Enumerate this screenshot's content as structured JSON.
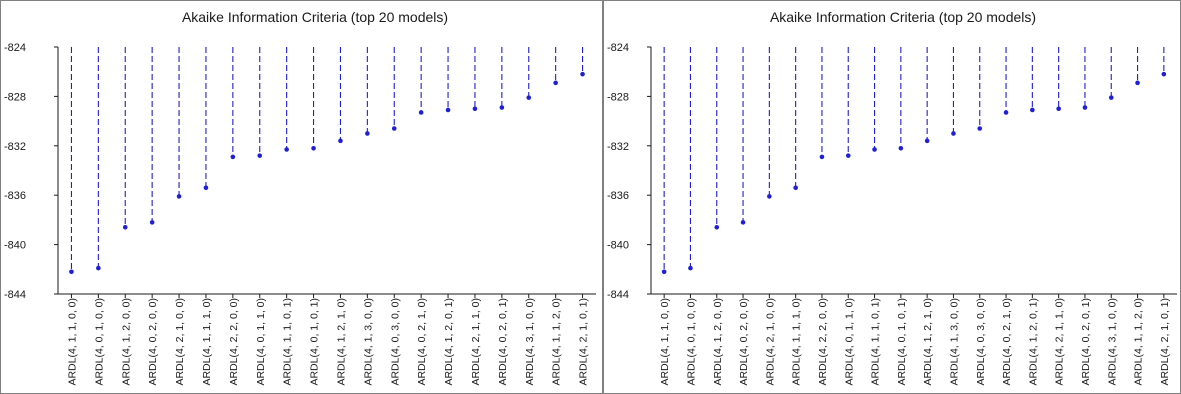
{
  "chart_data": [
    {
      "type": "dropline",
      "title": "Akaike Information Criteria (top 20 models)",
      "ylim": [
        -844,
        -824
      ],
      "yticks": [
        -824,
        -828,
        -832,
        -836,
        -840,
        -844
      ],
      "ytick_labels": [
        "-824",
        "-828",
        "-832",
        "-836",
        "-840",
        "-844"
      ],
      "grid": false,
      "color": "#1f1fd6",
      "categories": [
        "ARDL(4, 1, 1, 0, 0)",
        "ARDL(4, 0, 1, 0, 0)",
        "ARDL(4, 1, 2, 0, 0)",
        "ARDL(4, 0, 2, 0, 0)",
        "ARDL(4, 2, 1, 0, 0)",
        "ARDL(4, 1, 1, 1, 0)",
        "ARDL(4, 2, 2, 0, 0)",
        "ARDL(4, 0, 1, 1, 0)",
        "ARDL(4, 1, 1, 0, 1)",
        "ARDL(4, 0, 1, 0, 1)",
        "ARDL(4, 1, 2, 1, 0)",
        "ARDL(4, 1, 3, 0, 0)",
        "ARDL(4, 0, 3, 0, 0)",
        "ARDL(4, 0, 2, 1, 0)",
        "ARDL(4, 1, 2, 0, 1)",
        "ARDL(4, 2, 1, 1, 0)",
        "ARDL(4, 0, 2, 0, 1)",
        "ARDL(4, 3, 1, 0, 0)",
        "ARDL(4, 1, 1, 2, 0)",
        "ARDL(4, 2, 1, 0, 1)"
      ],
      "values": [
        -842.2,
        -841.9,
        -838.6,
        -838.2,
        -836.1,
        -835.4,
        -832.9,
        -832.8,
        -832.3,
        -832.2,
        -831.6,
        -831.0,
        -830.6,
        -829.3,
        -829.1,
        -829.0,
        -828.9,
        -828.1,
        -826.9,
        -826.2
      ]
    },
    {
      "type": "dropline",
      "title": "Akaike Information Criteria (top 20 models)",
      "ylim": [
        -844,
        -824
      ],
      "yticks": [
        -824,
        -828,
        -832,
        -836,
        -840,
        -844
      ],
      "ytick_labels": [
        "-824",
        "-828",
        "-832",
        "-836",
        "-840",
        "-844"
      ],
      "grid": false,
      "color": "#1f1fd6",
      "categories": [
        "ARDL(4, 1, 1, 0, 0)",
        "ARDL(4, 0, 1, 0, 0)",
        "ARDL(4, 1, 2, 0, 0)",
        "ARDL(4, 0, 2, 0, 0)",
        "ARDL(4, 2, 1, 0, 0)",
        "ARDL(4, 1, 1, 1, 0)",
        "ARDL(4, 2, 2, 0, 0)",
        "ARDL(4, 0, 1, 1, 0)",
        "ARDL(4, 1, 1, 0, 1)",
        "ARDL(4, 0, 1, 0, 1)",
        "ARDL(4, 1, 2, 1, 0)",
        "ARDL(4, 1, 3, 0, 0)",
        "ARDL(4, 0, 3, 0, 0)",
        "ARDL(4, 0, 2, 1, 0)",
        "ARDL(4, 1, 2, 0, 1)",
        "ARDL(4, 2, 1, 1, 0)",
        "ARDL(4, 0, 2, 0, 1)",
        "ARDL(4, 3, 1, 0, 0)",
        "ARDL(4, 1, 1, 2, 0)",
        "ARDL(4, 2, 1, 0, 1)"
      ],
      "values": [
        -842.2,
        -841.9,
        -838.6,
        -838.2,
        -836.1,
        -835.4,
        -832.9,
        -832.8,
        -832.3,
        -832.2,
        -831.6,
        -831.0,
        -830.6,
        -829.3,
        -829.1,
        -829.0,
        -828.9,
        -828.1,
        -826.9,
        -826.2
      ]
    }
  ]
}
